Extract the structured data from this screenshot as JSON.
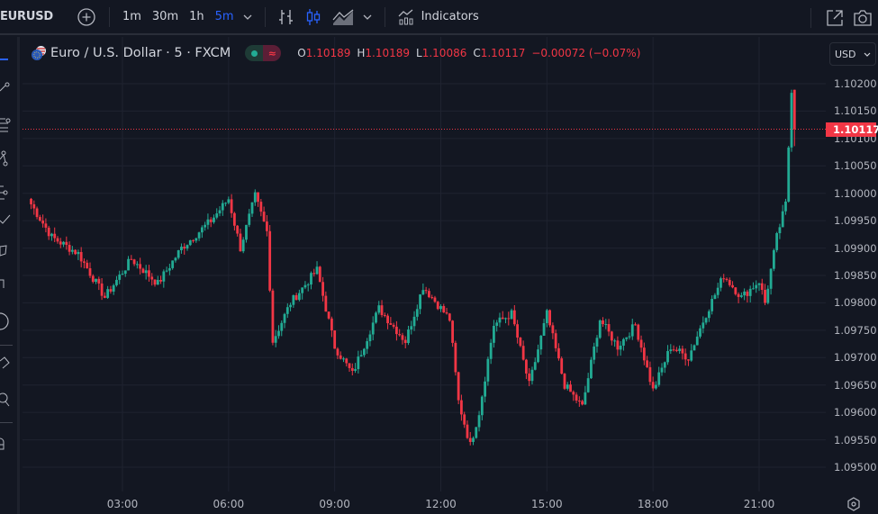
{
  "toolbar": {
    "symbol": "EURUSD",
    "timeframes": [
      {
        "label": "1m",
        "active": false
      },
      {
        "label": "30m",
        "active": false
      },
      {
        "label": "1h",
        "active": false
      },
      {
        "label": "5m",
        "active": true
      }
    ],
    "indicators_label": "Indicators",
    "icons": [
      "add-symbol-icon",
      "chevron-down-icon",
      "bar-chart-icon",
      "candles-icon",
      "area-chart-icon",
      "chevron-down-icon",
      "indicators-icon",
      "popout-icon",
      "camera-icon"
    ]
  },
  "legend": {
    "title": "Euro / U.S. Dollar · 5 · FXCM",
    "open_label": "O",
    "open": "1.10189",
    "high_label": "H",
    "high": "1.10189",
    "low_label": "L",
    "low": "1.10086",
    "close_label": "C",
    "close": "1.10117",
    "change": "−0.00072 (−0.07%)"
  },
  "price_scale": {
    "currency": "USD",
    "current_price": "1.10117",
    "ticks": [
      "1.10200",
      "1.10150",
      "1.10100",
      "1.10050",
      "1.10000",
      "1.09950",
      "1.09900",
      "1.09850",
      "1.09800",
      "1.09750",
      "1.09700",
      "1.09650",
      "1.09600",
      "1.09550",
      "1.09500"
    ]
  },
  "time_scale": {
    "ticks": [
      "03:00",
      "06:00",
      "09:00",
      "12:00",
      "15:00",
      "18:00",
      "21:00"
    ]
  },
  "colors": {
    "background": "#131722",
    "up": "#22ab94",
    "down": "#f23645",
    "grid": "#1f2330",
    "accent": "#2962ff"
  },
  "chart_data": {
    "type": "candlestick",
    "title": "Euro / U.S. Dollar · 5 · FXCM",
    "interval": "5m",
    "xlabel": "",
    "ylabel": "USD",
    "ylim": [
      1.0948,
      1.10225
    ],
    "grid": true,
    "x_ticks": [
      "03:00",
      "06:00",
      "09:00",
      "12:00",
      "15:00",
      "18:00",
      "21:00"
    ],
    "y_ticks": [
      1.102,
      1.1015,
      1.101,
      1.1005,
      1.1,
      1.0995,
      1.099,
      1.0985,
      1.098,
      1.0975,
      1.097,
      1.0965,
      1.096,
      1.0955,
      1.095
    ],
    "last": {
      "open": 1.10189,
      "high": 1.10189,
      "low": 1.10086,
      "close": 1.10117,
      "change": -0.00072,
      "change_pct": -0.07
    },
    "close_path": [
      {
        "t": "00:25",
        "price": 1.0998
      },
      {
        "t": "01:00",
        "price": 1.0992
      },
      {
        "t": "01:45",
        "price": 1.0989
      },
      {
        "t": "02:30",
        "price": 1.0981
      },
      {
        "t": "03:15",
        "price": 1.0988
      },
      {
        "t": "04:00",
        "price": 1.09835
      },
      {
        "t": "04:40",
        "price": 1.099
      },
      {
        "t": "05:30",
        "price": 1.0995
      },
      {
        "t": "06:00",
        "price": 1.0999
      },
      {
        "t": "06:20",
        "price": 1.099
      },
      {
        "t": "06:45",
        "price": 1.09995
      },
      {
        "t": "07:05",
        "price": 1.0993
      },
      {
        "t": "07:15",
        "price": 1.0973
      },
      {
        "t": "07:45",
        "price": 1.098
      },
      {
        "t": "08:30",
        "price": 1.0986
      },
      {
        "t": "09:00",
        "price": 1.0972
      },
      {
        "t": "09:30",
        "price": 1.0967
      },
      {
        "t": "10:15",
        "price": 1.0979
      },
      {
        "t": "11:00",
        "price": 1.0973
      },
      {
        "t": "11:30",
        "price": 1.0983
      },
      {
        "t": "12:15",
        "price": 1.0977
      },
      {
        "t": "12:30",
        "price": 1.0962
      },
      {
        "t": "12:50",
        "price": 1.0954
      },
      {
        "t": "13:05",
        "price": 1.096
      },
      {
        "t": "13:30",
        "price": 1.0976
      },
      {
        "t": "14:00",
        "price": 1.0978
      },
      {
        "t": "14:30",
        "price": 1.0965
      },
      {
        "t": "15:00",
        "price": 1.0978
      },
      {
        "t": "15:30",
        "price": 1.0965
      },
      {
        "t": "16:00",
        "price": 1.0961
      },
      {
        "t": "16:30",
        "price": 1.0977
      },
      {
        "t": "17:00",
        "price": 1.0972
      },
      {
        "t": "17:30",
        "price": 1.0976
      },
      {
        "t": "18:00",
        "price": 1.0964
      },
      {
        "t": "18:30",
        "price": 1.0972
      },
      {
        "t": "19:00",
        "price": 1.097
      },
      {
        "t": "19:30",
        "price": 1.0978
      },
      {
        "t": "20:00",
        "price": 1.0985
      },
      {
        "t": "20:30",
        "price": 1.0981
      },
      {
        "t": "21:00",
        "price": 1.0984
      },
      {
        "t": "21:10",
        "price": 1.098
      },
      {
        "t": "21:30",
        "price": 1.0992
      },
      {
        "t": "21:45",
        "price": 1.0998
      },
      {
        "t": "21:55",
        "price": 1.1019
      },
      {
        "t": "22:00",
        "price": 1.10117
      }
    ]
  }
}
